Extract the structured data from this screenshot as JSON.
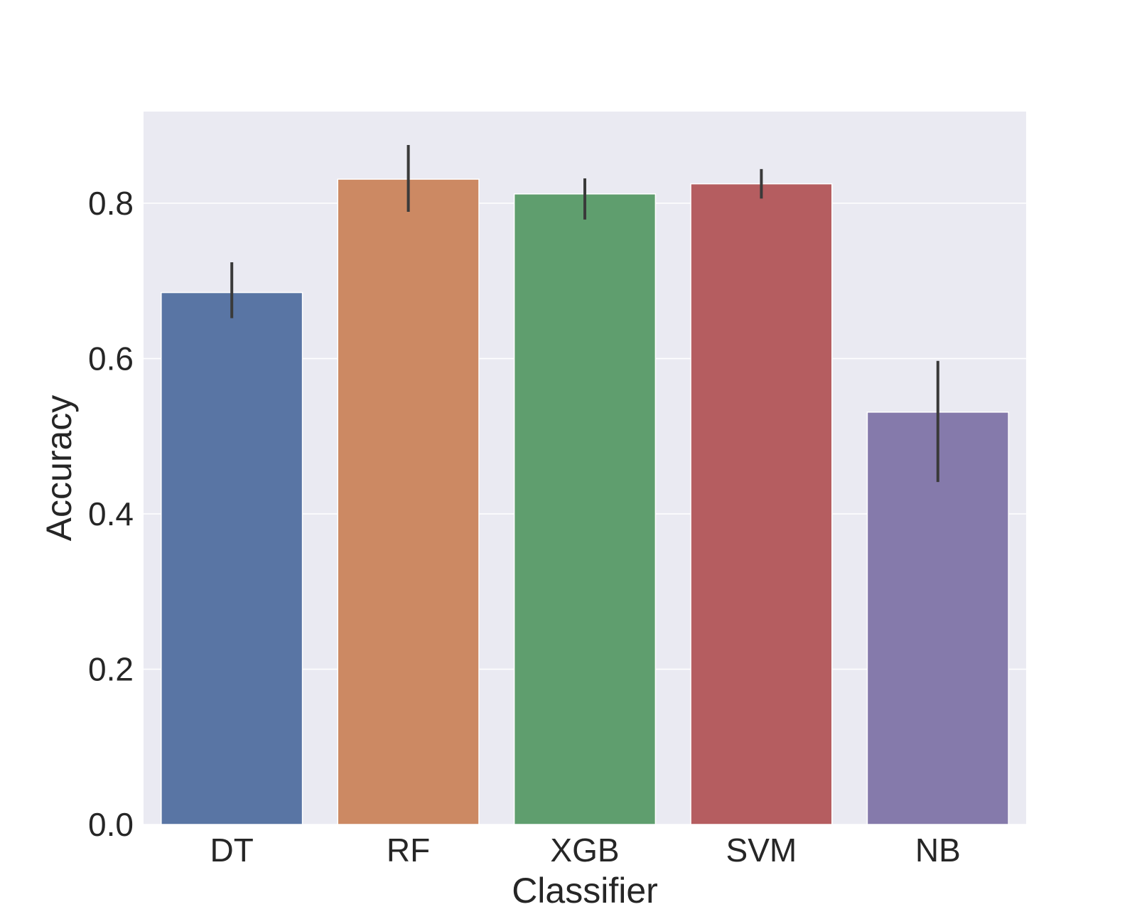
{
  "chart_data": {
    "type": "bar",
    "title": "",
    "xlabel": "Classifier",
    "ylabel": "Accuracy",
    "categories": [
      "DT",
      "RF",
      "XGB",
      "SVM",
      "NB"
    ],
    "values": [
      0.685,
      0.831,
      0.812,
      0.825,
      0.531
    ],
    "error_low": [
      0.652,
      0.789,
      0.779,
      0.806,
      0.441
    ],
    "error_high": [
      0.724,
      0.875,
      0.832,
      0.844,
      0.597
    ],
    "colors": [
      "#5975a4",
      "#cc8963",
      "#5f9e6e",
      "#b55d60",
      "#857aab"
    ],
    "ylim": [
      0,
      0.918
    ],
    "yticks": [
      0.0,
      0.2,
      0.4,
      0.6,
      0.8
    ],
    "ytick_labels": [
      "0.0",
      "0.2",
      "0.4",
      "0.6",
      "0.8"
    ],
    "grid": true,
    "background": "#eaeaf2",
    "error_color": "#3a3a3a"
  }
}
